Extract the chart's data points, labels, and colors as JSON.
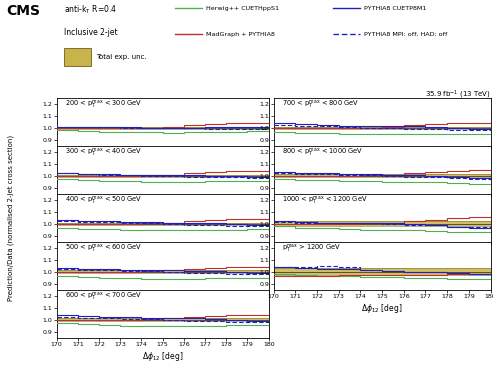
{
  "x_edges": [
    170,
    171,
    172,
    173,
    174,
    175,
    176,
    177,
    178,
    179,
    180
  ],
  "xlim": [
    170,
    180
  ],
  "ylim": [
    0.85,
    1.25
  ],
  "yticks": [
    0.9,
    1.0,
    1.1,
    1.2
  ],
  "xticks": [
    170,
    171,
    172,
    173,
    174,
    175,
    176,
    177,
    178,
    179,
    180
  ],
  "colors": {
    "herwig": "#50b050",
    "pythia8": "#2020c0",
    "madgraph": "#c03030",
    "unc_face": "#c8b44a",
    "unc_edge": "#807030"
  },
  "panel_labels": [
    "200 < p$_{\\rm T}^{\\rm max}$ < 300 GeV",
    "300 < p$_{\\rm T}^{\\rm max}$ < 400 GeV",
    "400 < p$_{\\rm T}^{\\rm max}$ < 500 GeV",
    "500 < p$_{\\rm T}^{\\rm max}$ < 600 GeV",
    "600 < p$_{\\rm T}^{\\rm max}$ < 700 GeV",
    "700 < p$_{\\rm T}^{\\rm max}$ < 800 GeV",
    "800 < p$_{\\rm T}^{\\rm max}$ < 1000 GeV",
    "1000 < p$_{\\rm T}^{\\rm max}$ < 1200 GeV",
    "p$_{\\rm T}^{\\rm max}$ > 1200 GeV"
  ],
  "herwig_data": [
    [
      0.98,
      0.972,
      0.968,
      0.963,
      0.961,
      0.96,
      0.961,
      0.965,
      0.968,
      0.97
    ],
    [
      0.971,
      0.963,
      0.958,
      0.952,
      0.95,
      0.949,
      0.95,
      0.952,
      0.954,
      0.956
    ],
    [
      0.968,
      0.96,
      0.954,
      0.948,
      0.946,
      0.945,
      0.946,
      0.948,
      0.95,
      0.952
    ],
    [
      0.966,
      0.957,
      0.951,
      0.945,
      0.943,
      0.942,
      0.943,
      0.945,
      0.947,
      0.949
    ],
    [
      0.97,
      0.962,
      0.956,
      0.951,
      0.949,
      0.948,
      0.948,
      0.95,
      0.952,
      0.954
    ],
    [
      0.968,
      0.96,
      0.954,
      0.948,
      0.946,
      0.945,
      0.946,
      0.948,
      0.95,
      0.952
    ],
    [
      0.975,
      0.967,
      0.961,
      0.955,
      0.952,
      0.95,
      0.948,
      0.944,
      0.938,
      0.934
    ],
    [
      0.978,
      0.968,
      0.961,
      0.953,
      0.95,
      0.948,
      0.945,
      0.941,
      0.934,
      0.93
    ],
    [
      0.982,
      0.974,
      0.967,
      0.96,
      0.957,
      0.954,
      0.95,
      0.946,
      0.94,
      0.936
    ]
  ],
  "pythia8_data": [
    [
      1.01,
      1.01,
      1.008,
      1.003,
      1.001,
      1.0,
      1.001,
      1.003,
      1.01,
      1.005
    ],
    [
      1.022,
      1.018,
      1.014,
      1.01,
      1.008,
      1.005,
      1.003,
      1.001,
      0.994,
      0.99
    ],
    [
      1.03,
      1.026,
      1.02,
      1.014,
      1.012,
      1.01,
      1.01,
      1.006,
      0.994,
      0.99
    ],
    [
      1.03,
      1.026,
      1.02,
      1.014,
      1.012,
      1.01,
      1.008,
      1.003,
      0.994,
      0.99
    ],
    [
      1.038,
      1.032,
      1.026,
      1.018,
      1.015,
      1.013,
      1.012,
      1.006,
      0.994,
      0.99
    ],
    [
      1.038,
      1.032,
      1.026,
      1.018,
      1.015,
      1.013,
      1.012,
      1.006,
      0.994,
      0.99
    ],
    [
      1.032,
      1.025,
      1.02,
      1.014,
      1.012,
      1.006,
      1.003,
      0.995,
      0.988,
      0.982
    ],
    [
      1.022,
      1.015,
      1.01,
      1.01,
      1.008,
      1.002,
      1.0,
      0.99,
      0.972,
      0.968
    ],
    [
      1.042,
      1.034,
      1.024,
      1.02,
      1.012,
      1.004,
      1.0,
      0.994,
      0.988,
      0.98
    ]
  ],
  "madgraph_data": [
    [
      1.0,
      1.0,
      1.0,
      1.0,
      1.002,
      1.01,
      1.02,
      1.03,
      1.04,
      1.042
    ],
    [
      1.0,
      1.0,
      1.0,
      1.0,
      1.002,
      1.01,
      1.02,
      1.03,
      1.04,
      1.042
    ],
    [
      1.0,
      1.0,
      1.0,
      1.0,
      1.002,
      1.01,
      1.02,
      1.03,
      1.04,
      1.042
    ],
    [
      1.0,
      1.0,
      1.0,
      1.0,
      1.002,
      1.01,
      1.02,
      1.03,
      1.04,
      1.042
    ],
    [
      1.0,
      1.0,
      1.0,
      1.0,
      1.002,
      1.01,
      1.02,
      1.03,
      1.04,
      1.042
    ],
    [
      1.0,
      1.0,
      1.0,
      1.0,
      1.002,
      1.01,
      1.02,
      1.03,
      1.04,
      1.042
    ],
    [
      1.0,
      1.0,
      1.0,
      1.0,
      1.002,
      1.01,
      1.02,
      1.03,
      1.042,
      1.05
    ],
    [
      1.0,
      1.0,
      1.0,
      1.0,
      1.002,
      1.01,
      1.022,
      1.034,
      1.05,
      1.06
    ],
    [
      0.96,
      0.962,
      0.966,
      0.97,
      0.972,
      0.972,
      0.972,
      0.972,
      0.978,
      0.98
    ]
  ],
  "pythia8mpi_data": [
    [
      1.01,
      1.008,
      1.004,
      1.0,
      1.0,
      0.998,
      0.994,
      0.991,
      0.99,
      0.989
    ],
    [
      1.02,
      1.014,
      1.01,
      1.003,
      1.001,
      0.999,
      0.993,
      0.99,
      0.989,
      0.984
    ],
    [
      1.022,
      1.016,
      1.012,
      1.004,
      1.002,
      1.0,
      0.993,
      0.99,
      0.984,
      0.98
    ],
    [
      1.022,
      1.016,
      1.012,
      1.004,
      1.002,
      1.0,
      0.992,
      0.989,
      0.982,
      0.978
    ],
    [
      1.022,
      1.016,
      1.012,
      1.004,
      1.002,
      1.0,
      0.992,
      0.989,
      0.982,
      0.978
    ],
    [
      1.022,
      1.016,
      1.012,
      1.004,
      1.002,
      1.0,
      0.992,
      0.989,
      0.982,
      0.978
    ],
    [
      1.022,
      1.016,
      1.012,
      1.004,
      1.002,
      1.0,
      0.992,
      0.988,
      0.98,
      0.976
    ],
    [
      1.014,
      1.01,
      1.01,
      1.01,
      1.004,
      1.0,
      0.992,
      0.988,
      0.974,
      0.97
    ],
    [
      1.042,
      1.04,
      1.048,
      1.042,
      1.014,
      1.004,
      1.0,
      0.994,
      0.99,
      0.982
    ]
  ],
  "unc_upper": [
    [
      1.01,
      1.01,
      1.01,
      1.01,
      1.01,
      1.01,
      1.01,
      1.01,
      1.01,
      1.01
    ],
    [
      1.01,
      1.01,
      1.01,
      1.01,
      1.01,
      1.01,
      1.01,
      1.01,
      1.01,
      1.01
    ],
    [
      1.01,
      1.01,
      1.01,
      1.01,
      1.01,
      1.01,
      1.01,
      1.01,
      1.01,
      1.01
    ],
    [
      1.01,
      1.01,
      1.01,
      1.01,
      1.01,
      1.01,
      1.01,
      1.01,
      1.01,
      1.01
    ],
    [
      1.01,
      1.01,
      1.01,
      1.01,
      1.01,
      1.01,
      1.01,
      1.01,
      1.01,
      1.01
    ],
    [
      1.01,
      1.01,
      1.01,
      1.01,
      1.01,
      1.01,
      1.01,
      1.01,
      1.01,
      1.01
    ],
    [
      1.012,
      1.012,
      1.012,
      1.012,
      1.012,
      1.012,
      1.012,
      1.012,
      1.012,
      1.012
    ],
    [
      1.02,
      1.02,
      1.02,
      1.02,
      1.02,
      1.02,
      1.02,
      1.02,
      1.02,
      1.02
    ],
    [
      1.03,
      1.03,
      1.03,
      1.03,
      1.03,
      1.03,
      1.03,
      1.03,
      1.03,
      1.03
    ]
  ],
  "unc_lower": [
    [
      0.99,
      0.99,
      0.99,
      0.99,
      0.99,
      0.99,
      0.99,
      0.99,
      0.99,
      0.99
    ],
    [
      0.99,
      0.99,
      0.99,
      0.99,
      0.99,
      0.99,
      0.99,
      0.99,
      0.99,
      0.99
    ],
    [
      0.99,
      0.99,
      0.99,
      0.99,
      0.99,
      0.99,
      0.99,
      0.99,
      0.99,
      0.99
    ],
    [
      0.99,
      0.99,
      0.99,
      0.99,
      0.99,
      0.99,
      0.99,
      0.99,
      0.99,
      0.99
    ],
    [
      0.99,
      0.99,
      0.99,
      0.99,
      0.99,
      0.99,
      0.99,
      0.99,
      0.99,
      0.99
    ],
    [
      0.99,
      0.99,
      0.99,
      0.99,
      0.99,
      0.99,
      0.99,
      0.99,
      0.99,
      0.99
    ],
    [
      0.988,
      0.988,
      0.988,
      0.988,
      0.988,
      0.988,
      0.988,
      0.988,
      0.988,
      0.988
    ],
    [
      0.98,
      0.98,
      0.98,
      0.98,
      0.98,
      0.98,
      0.98,
      0.98,
      0.98,
      0.98
    ],
    [
      0.97,
      0.97,
      0.97,
      0.97,
      0.97,
      0.97,
      0.97,
      0.97,
      0.97,
      0.97
    ]
  ],
  "ylabel": "Prediction/Data (normalised 2-jet cross section)",
  "xlabel": "$\\Delta\\phi_{12}$ [deg]",
  "cms_label": "CMS",
  "lumi_label": "35.9 fb$^{-1}$ (13 TeV)"
}
